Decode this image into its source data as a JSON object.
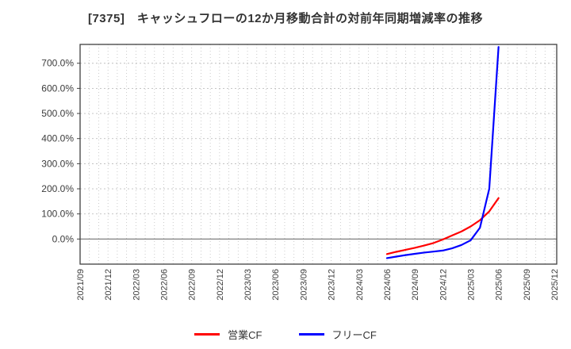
{
  "header": {
    "title": "[7375]　キャッシュフローの12か月移動合計の対前年同期増減率の推移"
  },
  "chart_data": {
    "type": "line",
    "title": "[7375]　キャッシュフローの12か月移動合計の対前年同期増減率の推移",
    "x_axis": {
      "unit": "month",
      "range_start": "2021/09",
      "range_end": "2025/12",
      "tick_labels": [
        "2021/09",
        "2021/12",
        "2022/03",
        "2022/06",
        "2022/09",
        "2022/12",
        "2023/03",
        "2023/06",
        "2023/09",
        "2023/12",
        "2024/03",
        "2024/06",
        "2024/09",
        "2024/12",
        "2025/03",
        "2025/06",
        "2025/09",
        "2025/12"
      ],
      "minor_gridlines": "monthly"
    },
    "y_axis": {
      "min": -100,
      "max": 775,
      "tick_values": [
        0,
        100,
        200,
        300,
        400,
        500,
        600,
        700
      ],
      "tick_label_format": "percent_one_decimal",
      "tick_labels": [
        "0.0%",
        "100.0%",
        "200.0%",
        "300.0%",
        "400.0%",
        "500.0%",
        "600.0%",
        "700.0%"
      ]
    },
    "grid": true,
    "legend_position": "bottom",
    "series": [
      {
        "name": "営業CF",
        "color": "#ff0000",
        "x": [
          "2024/06",
          "2024/07",
          "2024/08",
          "2024/09",
          "2024/10",
          "2024/11",
          "2024/12",
          "2025/01",
          "2025/02",
          "2025/03",
          "2025/04",
          "2025/05",
          "2025/06"
        ],
        "values": [
          -60,
          -51,
          -43,
          -35,
          -26,
          -16,
          -2,
          14,
          30,
          50,
          75,
          110,
          163
        ]
      },
      {
        "name": "フリーCF",
        "color": "#0000ff",
        "x": [
          "2024/06",
          "2024/07",
          "2024/08",
          "2024/09",
          "2024/10",
          "2024/11",
          "2024/12",
          "2025/01",
          "2025/02",
          "2025/03",
          "2025/04",
          "2025/05",
          "202506"
        ],
        "values": [
          -76,
          -70,
          -64,
          -59,
          -54,
          -50,
          -46,
          -37,
          -24,
          -5,
          45,
          200,
          765
        ]
      }
    ]
  },
  "legend": {
    "items": [
      {
        "label": "営業CF",
        "color": "#ff0000"
      },
      {
        "label": "フリーCF",
        "color": "#0000ff"
      }
    ]
  },
  "style": {
    "plot_border_color": "#404040",
    "gridline_color": "#bfbfbf",
    "zero_line_color": "#808080",
    "axis_label_color": "#3c3c3c",
    "title_color": "#333333"
  }
}
